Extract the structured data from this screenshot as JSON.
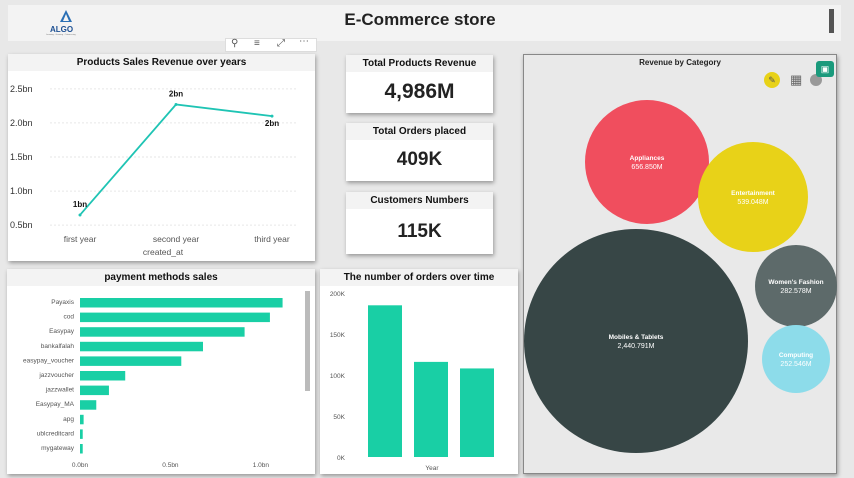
{
  "header": {
    "title": "E-Commerce store",
    "logo_text": "ALGO",
    "logo_subtext": "Learning · Growing · Outsourcing"
  },
  "visual_toolbar": {
    "icons": [
      "pin-icon",
      "filter-icon",
      "focus-mode-icon",
      "more-options-icon"
    ]
  },
  "kpis": [
    {
      "label": "Total Products Revenue",
      "value": "4,986M"
    },
    {
      "label": "Total Orders placed",
      "value": "409K"
    },
    {
      "label": "Customers Numbers",
      "value": "115K"
    }
  ],
  "line_chart": {
    "title": "Products Sales Revenue over years",
    "xlabel": "created_at",
    "chart_data": {
      "type": "line",
      "categories": [
        "first year",
        "second year",
        "third year"
      ],
      "values": [
        0.65,
        2.27,
        2.1
      ],
      "data_labels": [
        "1bn",
        "2bn",
        "2bn"
      ],
      "y_ticks": [
        "0.5bn",
        "1.0bn",
        "1.5bn",
        "2.0bn",
        "2.5bn"
      ],
      "y_tick_values": [
        0.5,
        1.0,
        1.5,
        2.0,
        2.5
      ],
      "ylim": [
        0.4,
        2.6
      ],
      "color": "#1fc4b4"
    }
  },
  "payment_chart": {
    "title": "payment methods sales",
    "chart_data": {
      "type": "bar",
      "orientation": "horizontal",
      "categories": [
        "Payaxis",
        "cod",
        "Easypay",
        "bankalfalah",
        "easypay_voucher",
        "jazzvoucher",
        "jazzwallet",
        "Easypay_MA",
        "apg",
        "ublcreditcard",
        "mygateway"
      ],
      "values": [
        1.12,
        1.05,
        0.91,
        0.68,
        0.56,
        0.25,
        0.16,
        0.09,
        0.02,
        0.015,
        0.015
      ],
      "x_ticks": [
        "0.0bn",
        "0.5bn",
        "1.0bn"
      ],
      "x_tick_values": [
        0,
        0.5,
        1.0
      ],
      "xlim": [
        0,
        1.15
      ],
      "color": "#19cfa5"
    }
  },
  "orders_chart": {
    "title": "The number of orders over time",
    "xlabel": "Year",
    "chart_data": {
      "type": "bar",
      "categories": [
        "",
        "",
        ""
      ],
      "values": [
        185000,
        116000,
        108000
      ],
      "y_ticks": [
        "0K",
        "50K",
        "100K",
        "150K",
        "200K"
      ],
      "y_tick_values": [
        0,
        50000,
        100000,
        150000,
        200000
      ],
      "ylim": [
        0,
        200000
      ],
      "color": "#19cfa5"
    }
  },
  "bubble_chart": {
    "title": "Revenue by Category",
    "chart_data": {
      "type": "bubble",
      "series": [
        {
          "name": "Appliances",
          "value_label": "656.850M",
          "value": 656.85,
          "color": "#f04e5e"
        },
        {
          "name": "Entertainment",
          "value_label": "539.048M",
          "value": 539.048,
          "color": "#e8d218"
        },
        {
          "name": "Mobiles & Tablets",
          "value_label": "2,440.791M",
          "value": 2440.791,
          "color": "#374646"
        },
        {
          "name": "Women's Fashion",
          "value_label": "282.578M",
          "value": 282.578,
          "color": "#5d6a6a"
        },
        {
          "name": "Computing",
          "value_label": "252.546M",
          "value": 252.546,
          "color": "#8ddcea"
        }
      ]
    },
    "tool_icons": [
      "paint-brush-icon",
      "table-grid-icon",
      "info-icon"
    ]
  },
  "side_panel_icon": "chat-icon"
}
